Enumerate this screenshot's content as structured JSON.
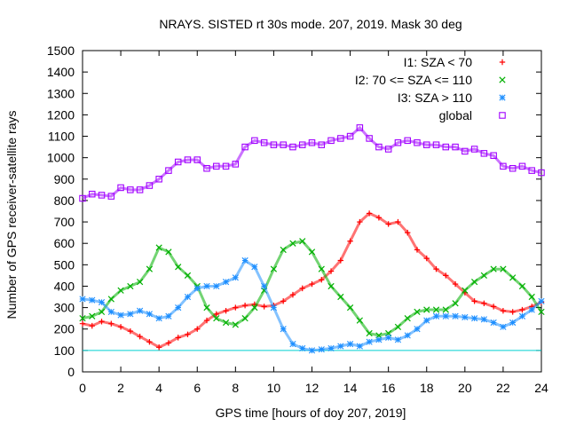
{
  "chart_data": {
    "type": "scatter",
    "title": "NRAYS. SISTED rt 30s mode. 207, 2019. Mask 30 deg",
    "xlabel": "GPS time [hours of doy 207, 2019]",
    "ylabel": "Number of GPS receiver-satellite rays",
    "xlim": [
      0,
      24
    ],
    "ylim": [
      0,
      1500
    ],
    "xticks": [
      "0",
      "2",
      "4",
      "6",
      "8",
      "10",
      "12",
      "14",
      "16",
      "18",
      "20",
      "22",
      "24"
    ],
    "yticks": [
      "0",
      "100",
      "200",
      "300",
      "400",
      "500",
      "600",
      "700",
      "800",
      "900",
      "1000",
      "1100",
      "1200",
      "1300",
      "1400",
      "1500"
    ],
    "legend_position": "top-right",
    "reference_line": {
      "y": 100,
      "color": "#00d0d0"
    },
    "series": [
      {
        "name": "I1: SZA < 70",
        "marker": "plus",
        "color": "#ff0000",
        "x": [
          0,
          0.5,
          1,
          1.5,
          2,
          2.5,
          3,
          3.5,
          4,
          4.5,
          5,
          5.5,
          6,
          6.5,
          7,
          7.5,
          8,
          8.5,
          9,
          9.5,
          10,
          10.5,
          11,
          11.5,
          12,
          12.5,
          13,
          13.5,
          14,
          14.5,
          15,
          15.5,
          16,
          16.5,
          17,
          17.5,
          18,
          18.5,
          19,
          19.5,
          20,
          20.5,
          21,
          21.5,
          22,
          22.5,
          23,
          23.5,
          24
        ],
        "y": [
          225,
          215,
          235,
          225,
          210,
          190,
          165,
          140,
          115,
          135,
          160,
          175,
          200,
          240,
          270,
          285,
          300,
          310,
          315,
          305,
          310,
          330,
          360,
          390,
          410,
          430,
          470,
          520,
          610,
          700,
          740,
          720,
          690,
          700,
          650,
          570,
          530,
          480,
          450,
          410,
          370,
          330,
          320,
          305,
          285,
          280,
          290,
          305,
          325
        ]
      },
      {
        "name": "I2: 70 <= SZA <= 110",
        "marker": "cross",
        "color": "#00b000",
        "x": [
          0,
          0.5,
          1,
          1.5,
          2,
          2.5,
          3,
          3.5,
          4,
          4.5,
          5,
          5.5,
          6,
          6.5,
          7,
          7.5,
          8,
          8.5,
          9,
          9.5,
          10,
          10.5,
          11,
          11.5,
          12,
          12.5,
          13,
          13.5,
          14,
          14.5,
          15,
          15.5,
          16,
          16.5,
          17,
          17.5,
          18,
          18.5,
          19,
          19.5,
          20,
          20.5,
          21,
          21.5,
          22,
          22.5,
          23,
          23.5,
          24
        ],
        "y": [
          250,
          260,
          280,
          340,
          380,
          400,
          420,
          480,
          580,
          560,
          490,
          450,
          400,
          300,
          250,
          230,
          220,
          250,
          300,
          380,
          480,
          570,
          600,
          610,
          560,
          480,
          400,
          350,
          300,
          240,
          180,
          170,
          180,
          210,
          250,
          280,
          290,
          290,
          290,
          320,
          380,
          420,
          450,
          480,
          480,
          440,
          400,
          350,
          280
        ]
      },
      {
        "name": "I3: SZA > 110",
        "marker": "star",
        "color": "#1e8fff",
        "x": [
          0,
          0.5,
          1,
          1.5,
          2,
          2.5,
          3,
          3.5,
          4,
          4.5,
          5,
          5.5,
          6,
          6.5,
          7,
          7.5,
          8,
          8.5,
          9,
          9.5,
          10,
          10.5,
          11,
          11.5,
          12,
          12.5,
          13,
          13.5,
          14,
          14.5,
          15,
          15.5,
          16,
          16.5,
          17,
          17.5,
          18,
          18.5,
          19,
          19.5,
          20,
          20.5,
          21,
          21.5,
          22,
          22.5,
          23,
          23.5,
          24
        ],
        "y": [
          340,
          335,
          325,
          280,
          265,
          270,
          285,
          270,
          250,
          260,
          300,
          350,
          390,
          400,
          400,
          420,
          440,
          520,
          490,
          400,
          300,
          200,
          130,
          110,
          100,
          105,
          110,
          120,
          130,
          120,
          140,
          150,
          160,
          150,
          170,
          200,
          240,
          260,
          260,
          260,
          255,
          250,
          245,
          230,
          210,
          230,
          260,
          290,
          330
        ]
      },
      {
        "name": "global",
        "marker": "square",
        "color": "#a000ff",
        "x": [
          0,
          0.5,
          1,
          1.5,
          2,
          2.5,
          3,
          3.5,
          4,
          4.5,
          5,
          5.5,
          6,
          6.5,
          7,
          7.5,
          8,
          8.5,
          9,
          9.5,
          10,
          10.5,
          11,
          11.5,
          12,
          12.5,
          13,
          13.5,
          14,
          14.5,
          15,
          15.5,
          16,
          16.5,
          17,
          17.5,
          18,
          18.5,
          19,
          19.5,
          20,
          20.5,
          21,
          21.5,
          22,
          22.5,
          23,
          23.5,
          24
        ],
        "y": [
          810,
          830,
          825,
          820,
          860,
          850,
          850,
          870,
          900,
          940,
          980,
          990,
          990,
          950,
          960,
          960,
          970,
          1050,
          1080,
          1070,
          1060,
          1060,
          1050,
          1060,
          1070,
          1060,
          1080,
          1090,
          1100,
          1140,
          1090,
          1050,
          1040,
          1070,
          1080,
          1070,
          1060,
          1060,
          1050,
          1050,
          1030,
          1040,
          1020,
          1010,
          960,
          950,
          960,
          940,
          930
        ]
      }
    ]
  }
}
